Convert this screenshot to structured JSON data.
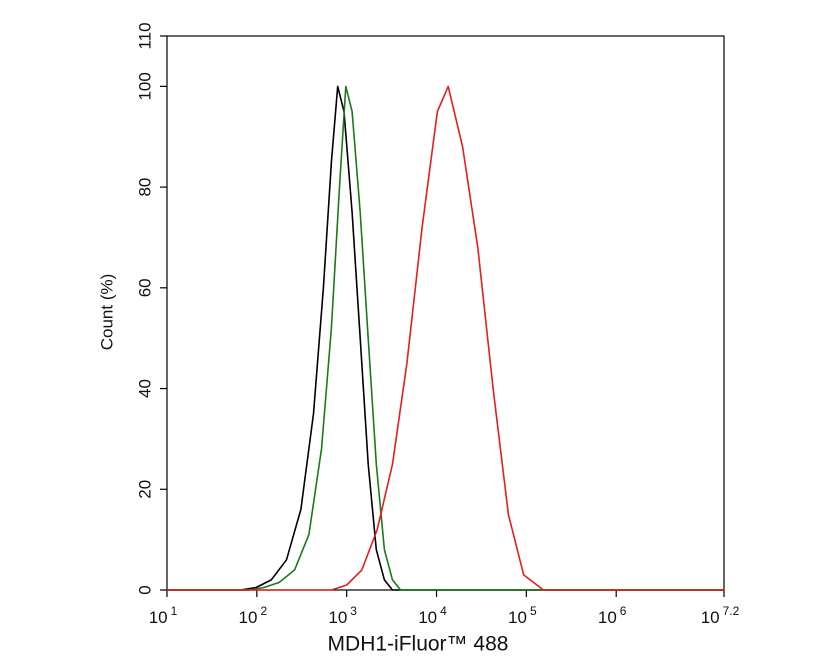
{
  "chart_data": {
    "type": "line",
    "x_label": "MDH1-iFluor™ 488",
    "y_label": "Count  (%)",
    "x_scale": "log",
    "xlim": [
      10,
      15848932
    ],
    "xticks": [
      {
        "value": 10,
        "label": "10",
        "exponent": "1"
      },
      {
        "value": 100,
        "label": "10",
        "exponent": "2"
      },
      {
        "value": 1000,
        "label": "10",
        "exponent": "3"
      },
      {
        "value": 10000,
        "label": "10",
        "exponent": "4"
      },
      {
        "value": 100000,
        "label": "10",
        "exponent": "5"
      },
      {
        "value": 1000000,
        "label": "10",
        "exponent": "6"
      },
      {
        "value": 15848932,
        "label": "10",
        "exponent": "7.2"
      }
    ],
    "ylim": [
      0,
      110
    ],
    "yticks": [
      0,
      20,
      40,
      60,
      80,
      100,
      110
    ],
    "series": [
      {
        "color": "#000000",
        "x": [
          10,
          66,
          98,
          145,
          214,
          309,
          427,
          550,
          676,
          794,
          933,
          1148,
          1413,
          1738,
          2138,
          2630,
          3236,
          15848932
        ],
        "values": [
          0,
          0,
          0.5,
          2,
          6,
          16,
          35,
          60,
          85,
          100,
          95,
          75,
          50,
          25,
          8,
          2,
          0,
          0
        ]
      },
      {
        "color": "#1a7a1a",
        "x": [
          10,
          81,
          120,
          178,
          263,
          380,
          525,
          676,
          832,
          977,
          1148,
          1413,
          1738,
          2138,
          2630,
          3236,
          3981,
          15848932
        ],
        "values": [
          0,
          0,
          0.5,
          1.5,
          4,
          11,
          28,
          52,
          80,
          100,
          95,
          75,
          50,
          25,
          8,
          2,
          0,
          0
        ]
      },
      {
        "color": "#e0201c",
        "x": [
          10,
          676,
          1000,
          1479,
          2188,
          3236,
          4677,
          6918,
          10233,
          13490,
          19498,
          28840,
          42658,
          63096,
          93325,
          154882,
          15848932
        ],
        "values": [
          0,
          0,
          1,
          4,
          12,
          25,
          45,
          72,
          95,
          100,
          88,
          68,
          40,
          15,
          3,
          0,
          0
        ]
      }
    ]
  }
}
